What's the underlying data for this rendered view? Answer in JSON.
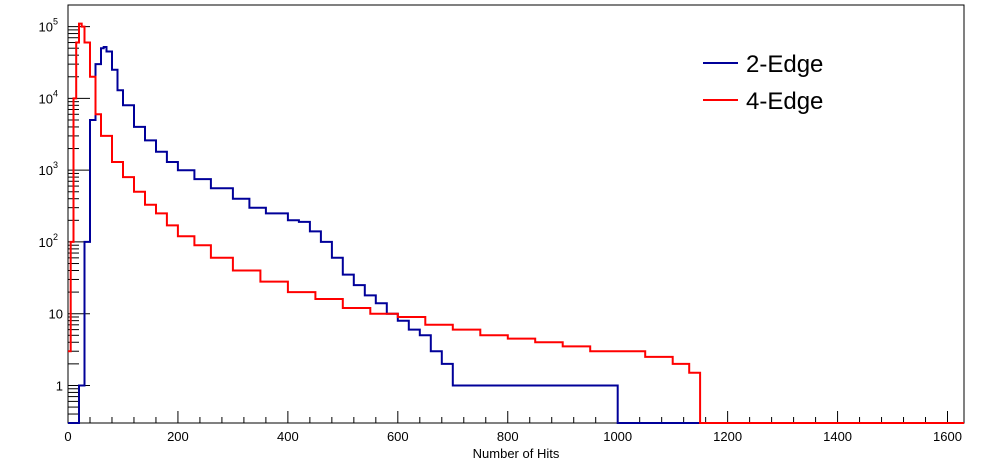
{
  "chart_data": {
    "type": "line",
    "title": "",
    "xlabel": "Number of Hits",
    "ylabel": "",
    "xlim": [
      0,
      1630
    ],
    "ylim": [
      0.3,
      200000
    ],
    "yscale": "log",
    "grid": false,
    "legend_position": "top-right",
    "x_ticks": [
      0,
      200,
      400,
      600,
      800,
      1000,
      1200,
      1400,
      1600
    ],
    "x_tick_labels": [
      "0",
      "200",
      "400",
      "600",
      "800",
      "1000",
      "1200",
      "1400",
      "1600"
    ],
    "y_ticks": [
      1,
      10,
      100,
      1000,
      10000,
      100000
    ],
    "y_tick_labels": [
      {
        "base": "1",
        "exp": ""
      },
      {
        "base": "10",
        "exp": ""
      },
      {
        "base": "10",
        "exp": "2"
      },
      {
        "base": "10",
        "exp": "3"
      },
      {
        "base": "10",
        "exp": "4"
      },
      {
        "base": "10",
        "exp": "5"
      }
    ],
    "series": [
      {
        "name": "2-Edge",
        "color": "#000099",
        "x": [
          0,
          10,
          20,
          30,
          40,
          50,
          60,
          65,
          70,
          80,
          90,
          100,
          120,
          140,
          160,
          180,
          200,
          230,
          260,
          300,
          330,
          360,
          400,
          420,
          440,
          460,
          480,
          500,
          520,
          540,
          560,
          580,
          600,
          620,
          640,
          660,
          680,
          700,
          720,
          740,
          760,
          780,
          800,
          850,
          900,
          950,
          1000,
          1050,
          1100,
          1150,
          1200,
          1260,
          1350,
          1440,
          1470,
          1520,
          1625
        ],
        "y": [
          0.3,
          0.3,
          1,
          100,
          5000,
          30000,
          50000,
          52000,
          45000,
          25000,
          13000,
          8000,
          4000,
          2600,
          1800,
          1300,
          1000,
          750,
          560,
          400,
          300,
          250,
          200,
          190,
          140,
          100,
          60,
          35,
          25,
          18,
          14,
          10,
          8,
          6,
          5,
          3,
          2,
          1,
          1,
          1,
          1,
          1,
          1,
          1,
          1,
          1,
          0.3,
          0.3,
          0.3,
          0.3,
          0.3,
          0.3,
          0.3,
          0.3,
          0.3,
          0.3,
          0.3
        ]
      },
      {
        "name": "4-Edge",
        "color": "#ff0000",
        "x": [
          0,
          5,
          10,
          15,
          20,
          25,
          30,
          40,
          50,
          60,
          80,
          100,
          120,
          140,
          160,
          180,
          200,
          230,
          260,
          300,
          350,
          400,
          450,
          500,
          550,
          600,
          650,
          700,
          750,
          800,
          850,
          900,
          950,
          1000,
          1050,
          1100,
          1130,
          1150,
          1200,
          1300,
          1400,
          1500,
          1630
        ],
        "y": [
          3,
          100,
          10000,
          60000,
          110000,
          100000,
          60000,
          20000,
          6000,
          3000,
          1300,
          800,
          500,
          330,
          250,
          170,
          120,
          90,
          60,
          40,
          28,
          20,
          16,
          12,
          10,
          9,
          7,
          6,
          5,
          4.5,
          4,
          3.5,
          3,
          3,
          2.5,
          2,
          1.5,
          0.3,
          0.3,
          0.3,
          0.3,
          0.3,
          0.3
        ]
      }
    ]
  }
}
